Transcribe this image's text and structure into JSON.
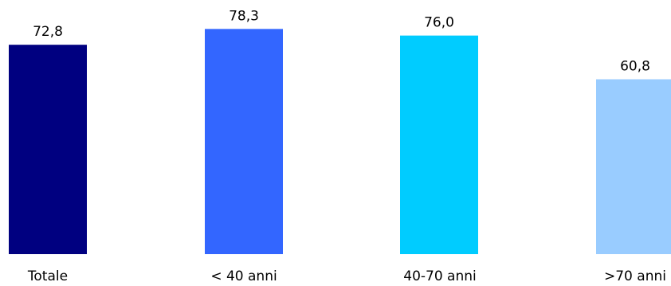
{
  "chart_data": {
    "type": "bar",
    "title": "",
    "xlabel": "",
    "ylabel": "",
    "categories": [
      "Totale",
      "< 40 anni",
      "40-70 anni",
      ">70 anni"
    ],
    "values": [
      72.8,
      78.3,
      76.0,
      60.8
    ],
    "value_labels": [
      "72,8",
      "78,3",
      "76,0",
      "60,8"
    ],
    "colors": [
      "#000080",
      "#3366FF",
      "#00CCFF",
      "#99CCFF"
    ],
    "ylim": [
      0,
      80
    ],
    "grid": false,
    "legend": "none"
  }
}
